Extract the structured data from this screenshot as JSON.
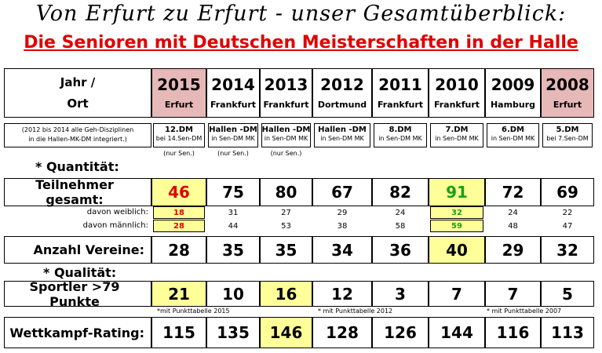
{
  "header": {
    "line1": "Von Erfurt zu Erfurt - unser Gesamtüberblick:",
    "line2": "Die Senioren mit Deutschen Meisterschaften in der Halle"
  },
  "table": {
    "corner": [
      "Jahr /",
      "Ort"
    ],
    "note_label": [
      "(2012 bis 2014 alle Geh-Disziplinen",
      "in die Hallen-MK-DM integriert.)"
    ],
    "columns": [
      {
        "year": 2015,
        "place": "Erfurt",
        "notes": [
          "12.DM",
          "bei 14.Sen-DM",
          "(nur Sen.)"
        ]
      },
      {
        "year": 2014,
        "place": "Frankfurt",
        "notes": [
          "Hallen -DM",
          "in Sen-DM MK",
          "(nur Sen.)"
        ]
      },
      {
        "year": 2013,
        "place": "Frankfurt",
        "notes": [
          "Hallen -DM",
          "in Sen-DM MK",
          "(nur Sen.)"
        ]
      },
      {
        "year": 2012,
        "place": "Dortmund",
        "notes": [
          "Hallen -DM",
          "in Sen-DM MK"
        ]
      },
      {
        "year": 2011,
        "place": "Frankfurt",
        "notes": [
          "8.DM",
          "in Sen-DM MK"
        ]
      },
      {
        "year": 2010,
        "place": "Frankfurt",
        "notes": [
          "7.DM",
          "in Sen-DM MK"
        ]
      },
      {
        "year": 2009,
        "place": "Hamburg",
        "notes": [
          "6.DM",
          "in Sen-DM MK"
        ]
      },
      {
        "year": 2008,
        "place": "Erfurt",
        "notes": [
          "5.DM",
          "bei 7.Sen-DM"
        ]
      }
    ],
    "quantity_heading": "* Quantität:",
    "quality_heading": "* Qualität:",
    "participants": {
      "label": "Teilnehmer gesamt:",
      "values": [
        46,
        75,
        80,
        67,
        82,
        91,
        72,
        69
      ]
    },
    "female": {
      "label": "davon weiblich:",
      "values": [
        18,
        31,
        27,
        29,
        24,
        32,
        24,
        22
      ]
    },
    "male": {
      "label": "davon männlich:",
      "values": [
        28,
        44,
        53,
        38,
        58,
        59,
        48,
        47
      ]
    },
    "clubs": {
      "label": "Anzahl Vereine:",
      "values": [
        28,
        35,
        35,
        34,
        36,
        40,
        29,
        32
      ]
    },
    "athletes": {
      "label": "Sportler >79 Punkte",
      "values": [
        21,
        10,
        16,
        12,
        3,
        7,
        7,
        5
      ]
    },
    "footnotes": [
      "*mit Punkttabelle 2015",
      "* mit Punkttabelle 2012",
      "* mit Punkttabelle 2007"
    ],
    "rating": {
      "label": "Wettkampf-Rating:",
      "values": [
        115,
        135,
        146,
        128,
        126,
        144,
        116,
        113
      ]
    }
  }
}
